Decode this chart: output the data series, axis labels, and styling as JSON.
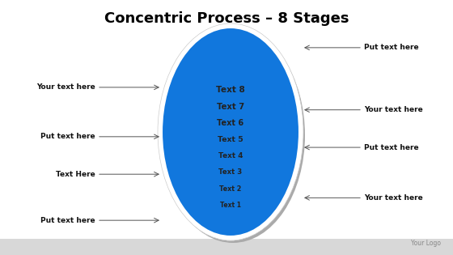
{
  "title": "Concentric Process – 8 Stages",
  "title_fontsize": 13,
  "background_color": "#ffffff",
  "ellipse_colors": [
    "#f5c400",
    "#aacc00",
    "#22aa44",
    "#2288ee",
    "#cc2222",
    "#cc44aa",
    "#7730bb",
    "#1177dd"
  ],
  "labels": [
    "Text 1",
    "Text 2",
    "Text 3",
    "Text 4",
    "Text 5",
    "Text 6",
    "Text 7",
    "Text 8"
  ],
  "left_annotations": [
    {
      "text": "Put text here",
      "yf": 0.895
    },
    {
      "text": "Text Here",
      "yf": 0.68
    },
    {
      "text": "Put text here",
      "yf": 0.505
    },
    {
      "text": "Your text here",
      "yf": 0.275
    }
  ],
  "right_annotations": [
    {
      "text": "Your text here",
      "yf": 0.79
    },
    {
      "text": "Put text here",
      "yf": 0.555
    },
    {
      "text": "Your text here",
      "yf": 0.38
    },
    {
      "text": "Put text here",
      "yf": 0.09
    }
  ],
  "footer": "Your Logo"
}
